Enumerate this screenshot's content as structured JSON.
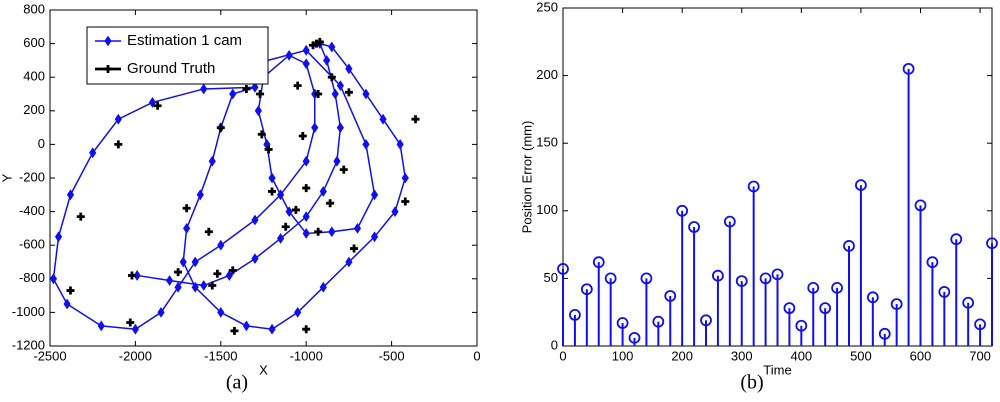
{
  "chart_data": [
    {
      "type": "line",
      "caption": "(a)",
      "xlabel": "X",
      "ylabel": "Y",
      "xlim": [
        -2500,
        0
      ],
      "xticks": [
        -2500,
        -2000,
        -1500,
        -1000,
        -500,
        0
      ],
      "ylim": [
        -1200,
        800
      ],
      "yticks": [
        -1200,
        -1000,
        -800,
        -600,
        -400,
        -200,
        0,
        200,
        400,
        600,
        800
      ],
      "legend": "upper left",
      "series": [
        {
          "name": "Estimation 1 cam",
          "color": "#1010ee",
          "marker": "diamond",
          "line": true,
          "x": [
            -1990,
            -1800,
            -1600,
            -1450,
            -1300,
            -1150,
            -1000,
            -900,
            -820,
            -800,
            -830,
            -880,
            -920,
            -850,
            -750,
            -650,
            -550,
            -450,
            -420,
            -480,
            -600,
            -750,
            -900,
            -1050,
            -1200,
            -1350,
            -1500,
            -1650,
            -1720,
            -1700,
            -1620,
            -1550,
            -1500,
            -1430,
            -1300,
            -1600,
            -1900,
            -2100,
            -2250,
            -2380,
            -2450,
            -2480,
            -2400,
            -2200,
            -2000,
            -1850,
            -1750,
            -1650,
            -1500,
            -1300,
            -1150,
            -1000,
            -950,
            -950,
            -1000,
            -1100,
            -1250,
            -1280,
            -1230,
            -1200,
            -1100,
            -1000,
            -850,
            -700,
            -600,
            -650,
            -800,
            -1000,
            -1300
          ],
          "values": [
            -780,
            -810,
            -840,
            -780,
            -680,
            -560,
            -430,
            -280,
            -100,
            100,
            300,
            500,
            600,
            580,
            450,
            300,
            150,
            0,
            -200,
            -400,
            -550,
            -700,
            -850,
            -1000,
            -1100,
            -1080,
            -1000,
            -850,
            -700,
            -500,
            -300,
            -100,
            100,
            300,
            340,
            330,
            250,
            150,
            -50,
            -300,
            -550,
            -800,
            -950,
            -1080,
            -1100,
            -1000,
            -850,
            -700,
            -600,
            -450,
            -300,
            -100,
            100,
            300,
            480,
            530,
            400,
            200,
            0,
            -200,
            -400,
            -530,
            -520,
            -500,
            -300,
            0,
            350,
            560,
            480
          ]
        },
        {
          "name": "Ground Truth",
          "color": "#000000",
          "marker": "plus",
          "line": false,
          "x": [
            -2380,
            -2320,
            -2100,
            -1870,
            -1750,
            -2020,
            -2030,
            -1700,
            -1570,
            -1500,
            -1520,
            -1550,
            -1430,
            -1420,
            -1350,
            -1270,
            -1260,
            -1220,
            -1200,
            -1120,
            -1060,
            -1050,
            -1000,
            -960,
            -940,
            -920,
            -930,
            -850,
            -780,
            -860,
            -750,
            -720,
            -420,
            -360,
            -1000,
            -930,
            -1020
          ],
          "values": [
            -870,
            -430,
            0,
            230,
            -760,
            -780,
            -1060,
            -380,
            -520,
            100,
            -770,
            -840,
            -750,
            -1110,
            330,
            300,
            60,
            -30,
            -280,
            -490,
            -390,
            350,
            -1100,
            590,
            600,
            610,
            300,
            400,
            -150,
            -350,
            310,
            -620,
            -340,
            150,
            -260,
            -520,
            50
          ]
        }
      ]
    },
    {
      "type": "stem",
      "caption": "(b)",
      "xlabel": "Time",
      "ylabel": "Position Error (mm)",
      "color": "#1010ee",
      "xlim": [
        0,
        720
      ],
      "xticks": [
        0,
        100,
        200,
        300,
        400,
        500,
        600,
        700
      ],
      "ylim": [
        0,
        250
      ],
      "yticks": [
        0,
        50,
        100,
        150,
        200,
        250
      ],
      "x": [
        0,
        20,
        40,
        60,
        80,
        100,
        120,
        140,
        160,
        180,
        200,
        220,
        240,
        260,
        280,
        300,
        320,
        340,
        360,
        380,
        400,
        420,
        440,
        460,
        480,
        500,
        520,
        540,
        560,
        580,
        600,
        620,
        640,
        660,
        680,
        700,
        720
      ],
      "values": [
        57,
        23,
        42,
        62,
        50,
        17,
        6,
        50,
        18,
        37,
        100,
        88,
        19,
        52,
        92,
        48,
        118,
        50,
        53,
        28,
        15,
        43,
        28,
        43,
        74,
        119,
        36,
        9,
        31,
        205,
        104,
        62,
        40,
        79,
        32,
        16,
        76
      ]
    }
  ]
}
